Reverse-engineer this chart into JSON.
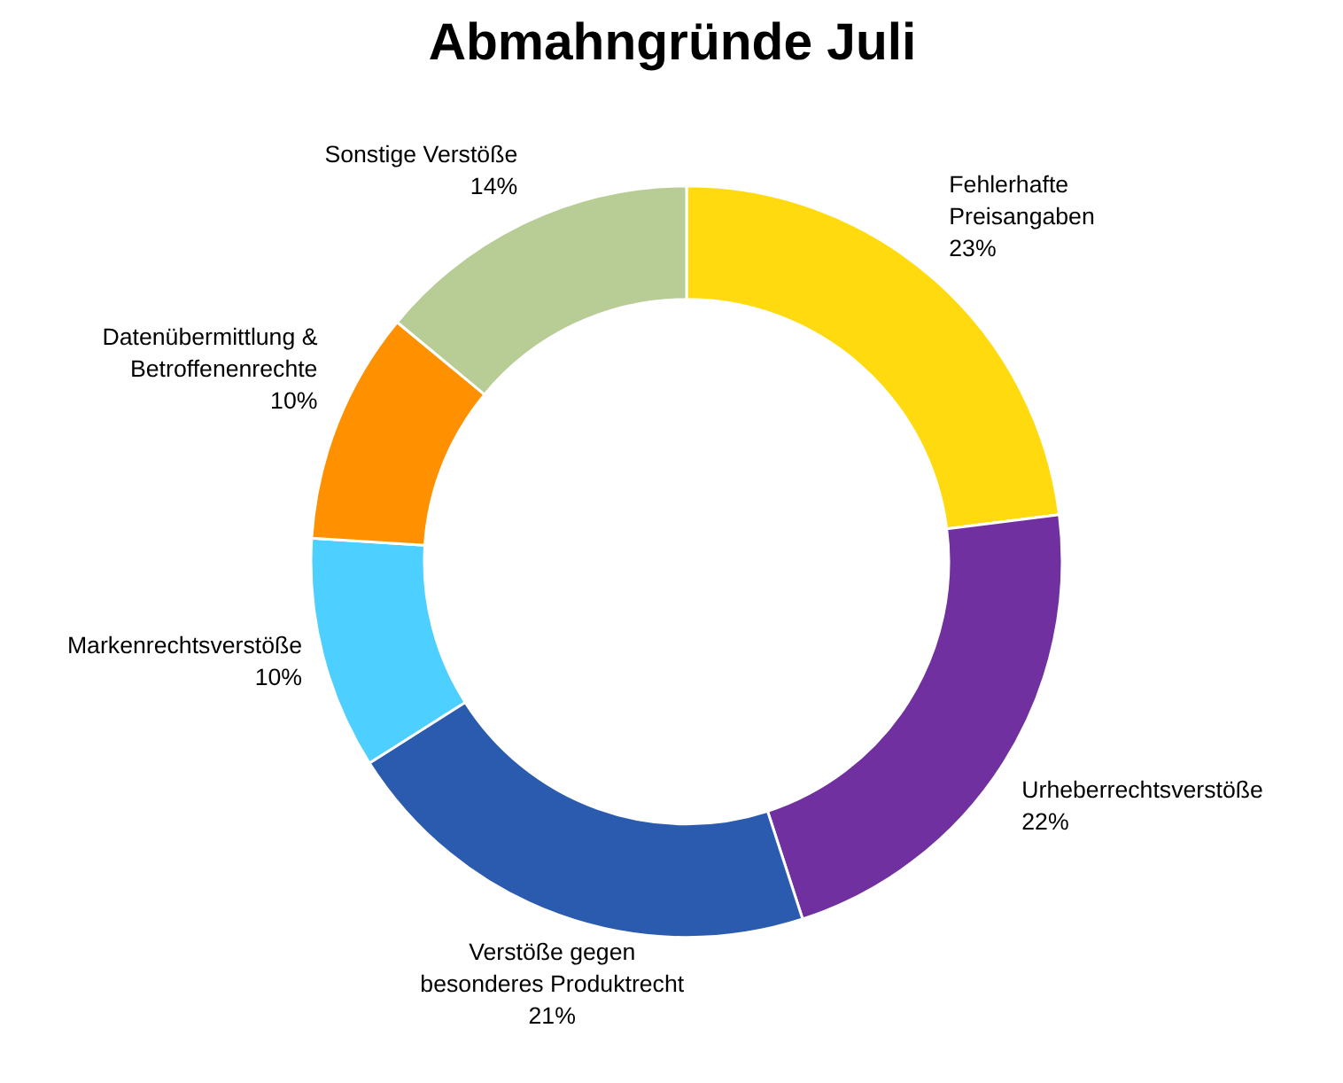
{
  "chart_data": {
    "type": "donut",
    "title": "Abmahngründe Juli",
    "categories": [
      "Fehlerhafte\nPreisangaben",
      "Urheberrechtsverstöße",
      "Verstöße gegen\nbesonderes Produktrecht",
      "Markenrechtsverstöße",
      "Datenübermittlung &\nBetroffenenrechte",
      "Sonstige Verstöße"
    ],
    "values": [
      23,
      22,
      21,
      10,
      10,
      14
    ],
    "colors": [
      "#ffda0f",
      "#7030a0",
      "#2b5bae",
      "#4dcfff",
      "#ff9000",
      "#b8cd96"
    ],
    "value_labels": [
      "23%",
      "22%",
      "21%",
      "10%",
      "10%",
      "14%"
    ]
  }
}
